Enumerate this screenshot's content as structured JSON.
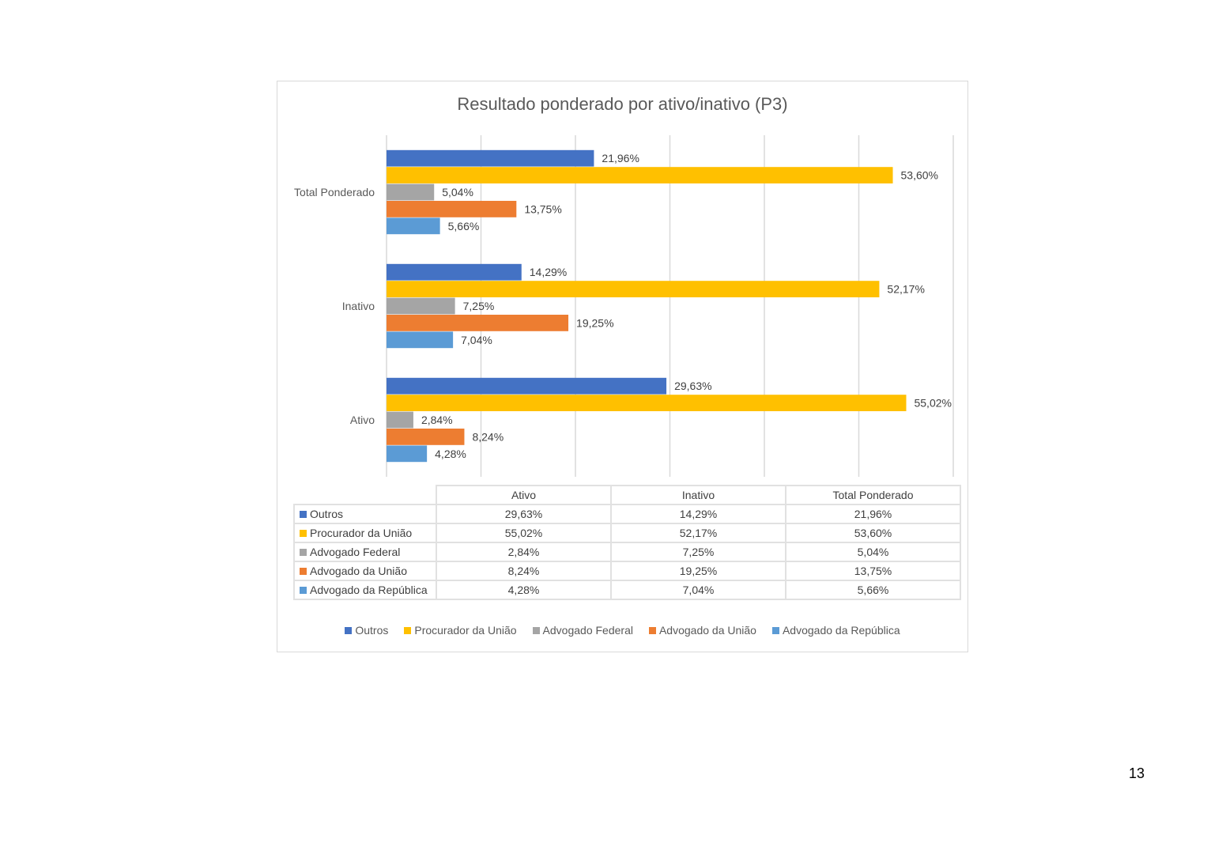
{
  "chart_data": {
    "type": "bar",
    "orientation": "horizontal",
    "title": "Resultado ponderado por ativo/inativo (P3)",
    "categories": [
      "Ativo",
      "Inativo",
      "Total Ponderado"
    ],
    "series": [
      {
        "name": "Outros",
        "color": "#4472c4",
        "values": [
          29.63,
          14.29,
          21.96
        ],
        "labels": [
          "29,63%",
          "14,29%",
          "21,96%"
        ]
      },
      {
        "name": "Procurador da União",
        "color": "#ffc000",
        "values": [
          55.02,
          52.17,
          53.6
        ],
        "labels": [
          "55,02%",
          "52,17%",
          "53,60%"
        ]
      },
      {
        "name": "Advogado Federal",
        "color": "#a5a5a5",
        "values": [
          2.84,
          7.25,
          5.04
        ],
        "labels": [
          "2,84%",
          "7,25%",
          "5,04%"
        ]
      },
      {
        "name": "Advogado da União",
        "color": "#ed7d31",
        "values": [
          8.24,
          19.25,
          13.75
        ],
        "labels": [
          "8,24%",
          "19,25%",
          "13,75%"
        ]
      },
      {
        "name": "Advogado da República",
        "color": "#5b9bd5",
        "values": [
          4.28,
          7.04,
          5.66
        ],
        "labels": [
          "4,28%",
          "7,04%",
          "5,66%"
        ]
      }
    ],
    "xlim": [
      0,
      60
    ],
    "grid": true,
    "legend_position": "bottom",
    "data_table": true
  },
  "page": {
    "number": "13"
  }
}
